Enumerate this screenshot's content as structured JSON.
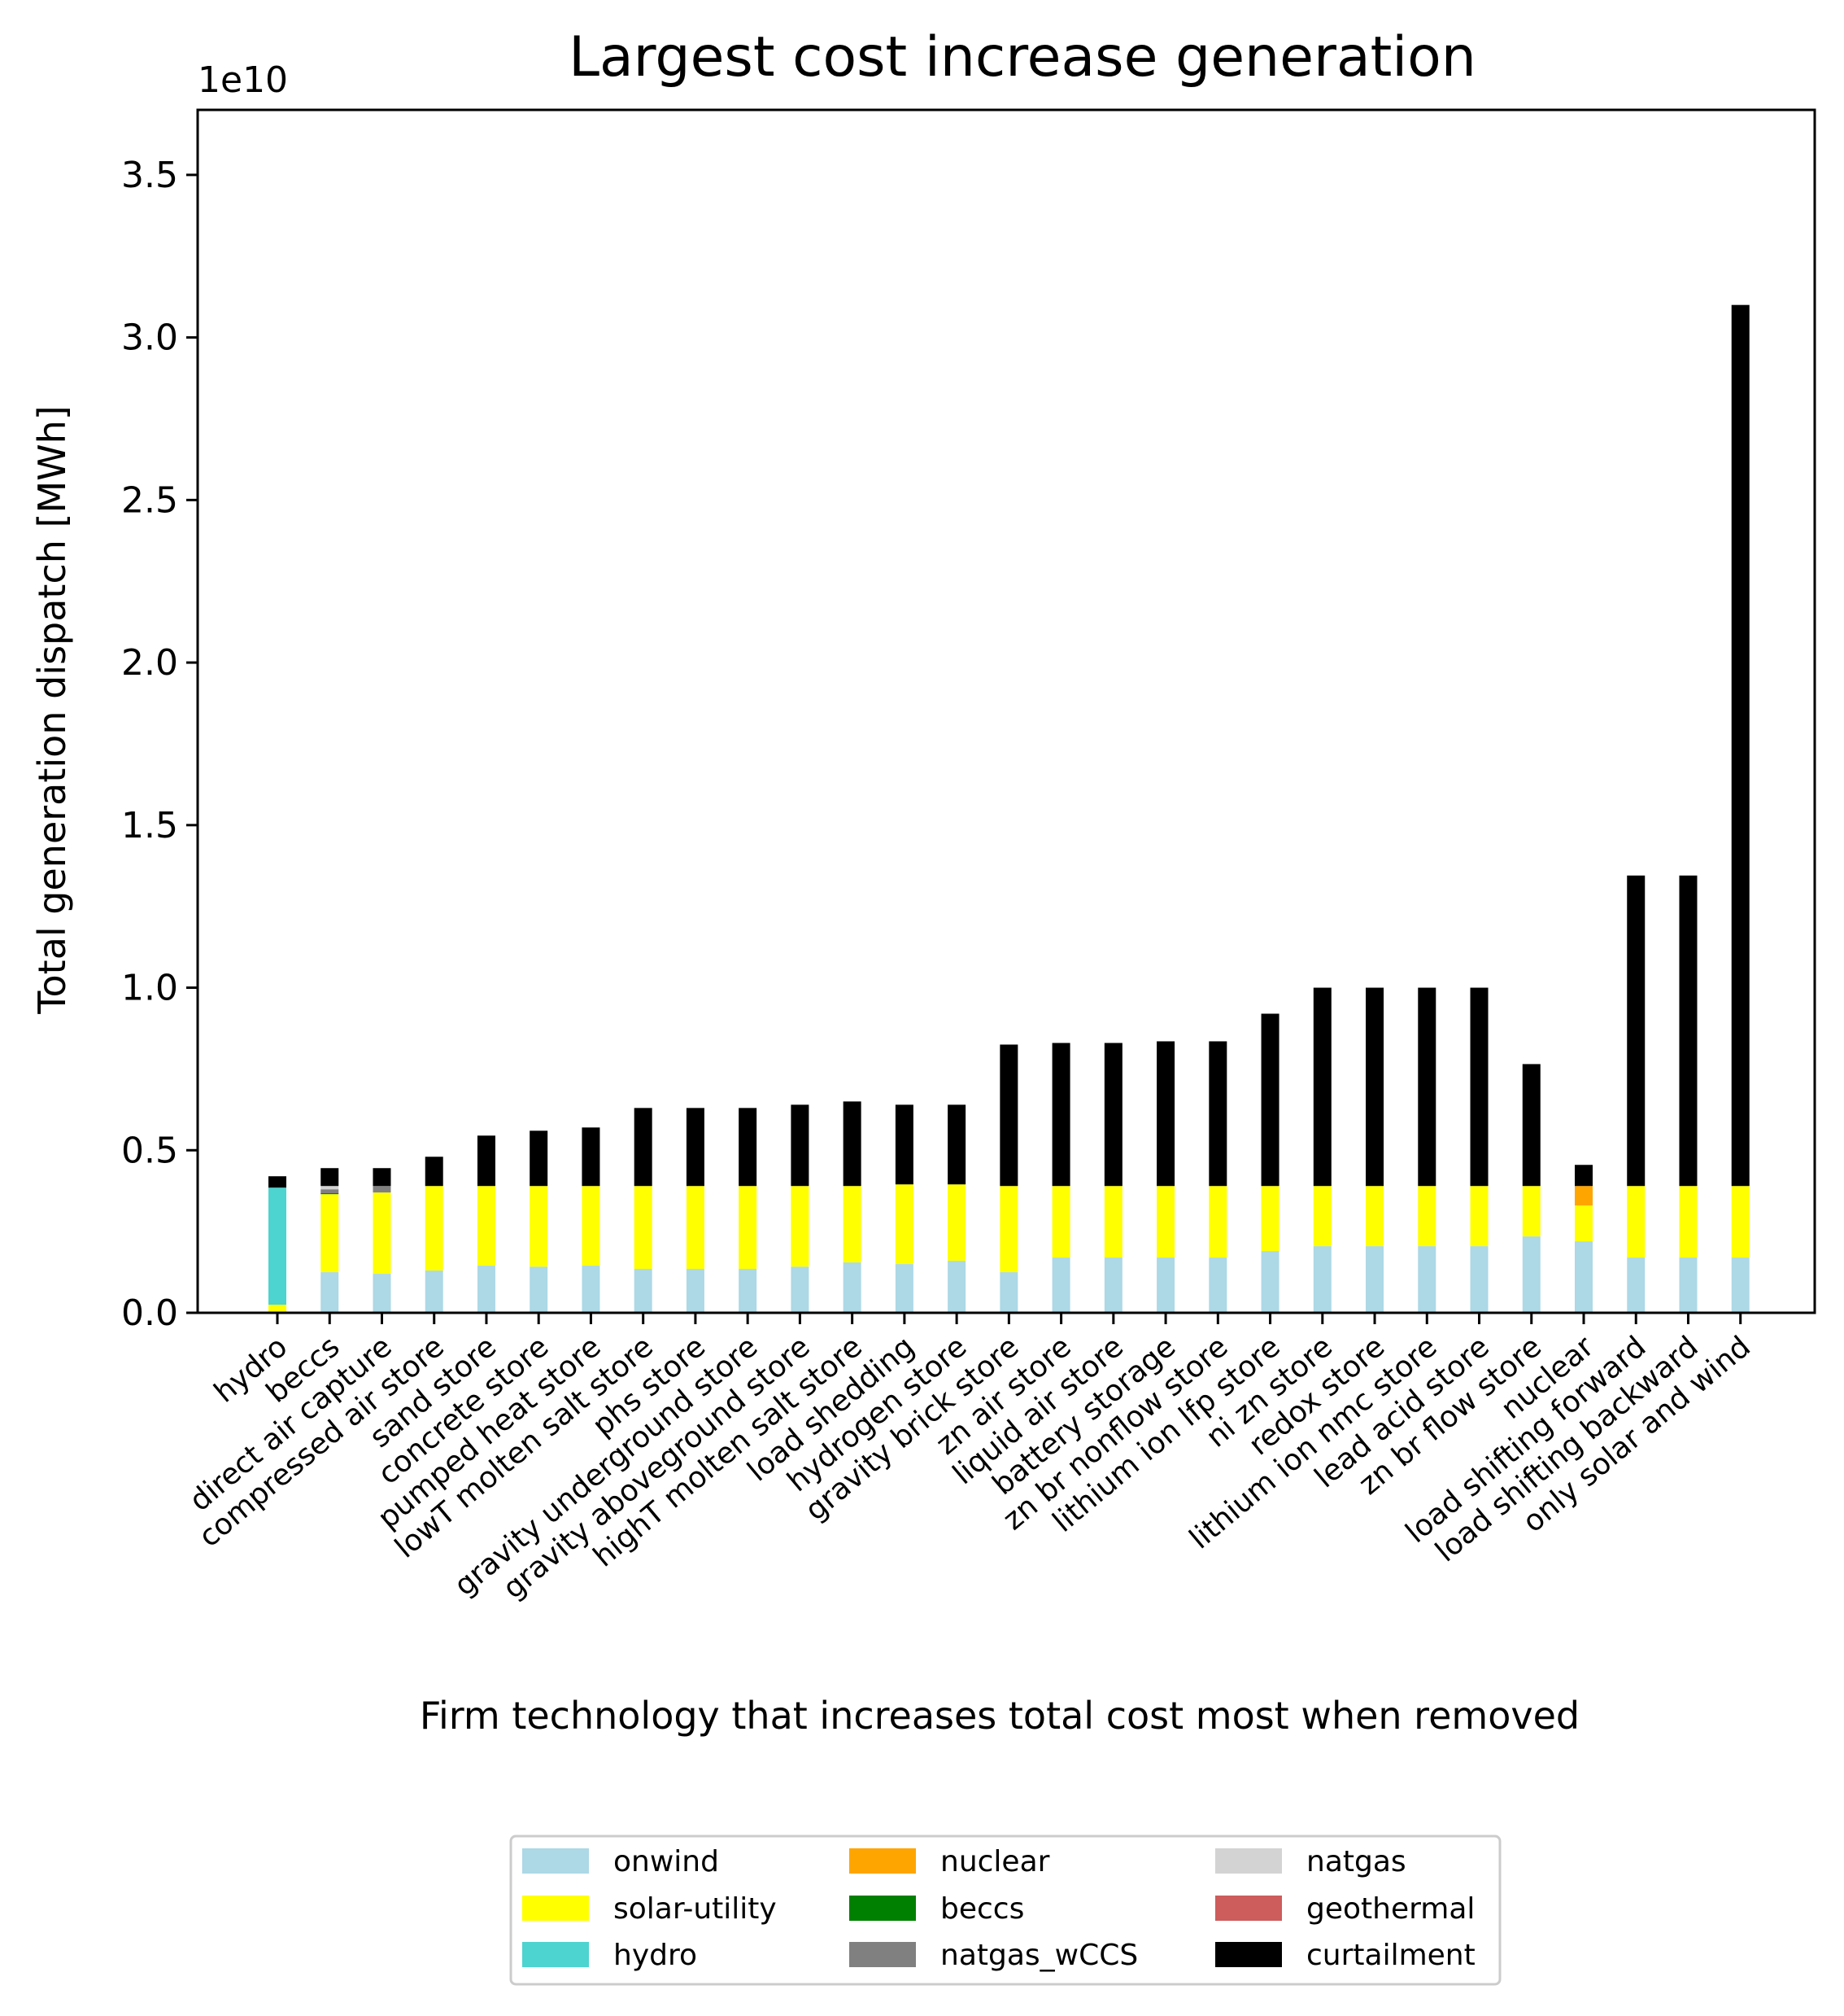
{
  "chart_data": {
    "type": "bar",
    "stacked": true,
    "title": "Largest cost increase generation",
    "xlabel": "Firm technology that increases total cost most when removed",
    "ylabel": "Total generation dispatch [MWh]",
    "y_offset_label": "1e10",
    "y_scale_factor": 10000000000,
    "ylim": [
      0,
      3.7
    ],
    "yticks": [
      0.0,
      0.5,
      1.0,
      1.5,
      2.0,
      2.5,
      3.0,
      3.5
    ],
    "ytick_labels": [
      "0.0",
      "0.5",
      "1.0",
      "1.5",
      "2.0",
      "2.5",
      "3.0",
      "3.5"
    ],
    "grid": false,
    "legend_position": "bottom-center",
    "categories": [
      "hydro",
      "beccs",
      "direct air capture",
      "compressed air store",
      "sand store",
      "concrete store",
      "pumped heat store",
      "lowT molten salt store",
      "phs store",
      "gravity underground store",
      "gravity aboveground store",
      "highT molten salt store",
      "load shedding",
      "hydrogen store",
      "gravity brick store",
      "zn air store",
      "liquid air store",
      "battery storage",
      "zn br nonflow store",
      "lithium ion lfp store",
      "ni zn store",
      "redox store",
      "lithium ion nmc store",
      "lead acid store",
      "zn br flow store",
      "nuclear",
      "load shifting forward",
      "load shifting backward",
      "only solar and wind"
    ],
    "series": [
      {
        "name": "onwind",
        "color": "#add8e6",
        "values": [
          0,
          0.125,
          0.12,
          0.13,
          0.145,
          0.142,
          0.145,
          0.135,
          0.135,
          0.135,
          0.142,
          0.155,
          0.15,
          0.16,
          0.125,
          0.17,
          0.17,
          0.17,
          0.17,
          0.19,
          0.205,
          0.205,
          0.205,
          0.205,
          0.235,
          0.22,
          0.17,
          0.17,
          0.17
        ]
      },
      {
        "name": "solar-utility",
        "color": "#ffff00",
        "values": [
          0.025,
          0.24,
          0.25,
          0.26,
          0.245,
          0.248,
          0.245,
          0.255,
          0.255,
          0.255,
          0.248,
          0.235,
          0.245,
          0.235,
          0.265,
          0.22,
          0.22,
          0.22,
          0.22,
          0.2,
          0.185,
          0.185,
          0.185,
          0.185,
          0.155,
          0.11,
          0.22,
          0.22,
          0.22
        ]
      },
      {
        "name": "hydro",
        "color": "#4dd3d0",
        "values": [
          0.36,
          0,
          0,
          0,
          0,
          0,
          0,
          0,
          0,
          0,
          0,
          0,
          0,
          0,
          0,
          0,
          0,
          0,
          0,
          0,
          0,
          0,
          0,
          0,
          0,
          0,
          0,
          0,
          0
        ]
      },
      {
        "name": "nuclear",
        "color": "#ffa500",
        "values": [
          0,
          0,
          0,
          0,
          0,
          0,
          0,
          0,
          0,
          0,
          0,
          0,
          0,
          0,
          0,
          0,
          0,
          0,
          0,
          0,
          0,
          0,
          0,
          0,
          0,
          0.06,
          0,
          0,
          0
        ]
      },
      {
        "name": "beccs",
        "color": "#008000",
        "values": [
          0,
          0.003,
          0,
          0,
          0,
          0,
          0,
          0,
          0,
          0,
          0,
          0,
          0,
          0,
          0,
          0,
          0,
          0,
          0,
          0,
          0,
          0,
          0,
          0,
          0,
          0,
          0,
          0,
          0
        ]
      },
      {
        "name": "natgas_wCCS",
        "color": "#808080",
        "values": [
          0,
          0.012,
          0.02,
          0,
          0,
          0,
          0,
          0,
          0,
          0,
          0,
          0,
          0,
          0,
          0,
          0,
          0,
          0,
          0,
          0,
          0,
          0,
          0,
          0,
          0,
          0,
          0,
          0,
          0
        ]
      },
      {
        "name": "natgas",
        "color": "#d3d3d3",
        "values": [
          0,
          0.01,
          0,
          0,
          0,
          0,
          0,
          0,
          0,
          0,
          0,
          0,
          0,
          0,
          0,
          0,
          0,
          0,
          0,
          0,
          0,
          0,
          0,
          0,
          0,
          0,
          0,
          0,
          0
        ]
      },
      {
        "name": "geothermal",
        "color": "#cd5c5c",
        "values": [
          0,
          0,
          0,
          0,
          0,
          0,
          0,
          0,
          0,
          0,
          0,
          0,
          0,
          0,
          0,
          0,
          0,
          0,
          0,
          0,
          0,
          0,
          0,
          0,
          0,
          0,
          0,
          0,
          0
        ]
      },
      {
        "name": "curtailment",
        "color": "#000000",
        "values": [
          0.035,
          0.055,
          0.055,
          0.09,
          0.155,
          0.17,
          0.18,
          0.24,
          0.24,
          0.24,
          0.25,
          0.26,
          0.245,
          0.245,
          0.435,
          0.44,
          0.44,
          0.445,
          0.445,
          0.53,
          0.61,
          0.61,
          0.61,
          0.61,
          0.375,
          0.065,
          0.955,
          0.955,
          2.71
        ]
      }
    ]
  }
}
